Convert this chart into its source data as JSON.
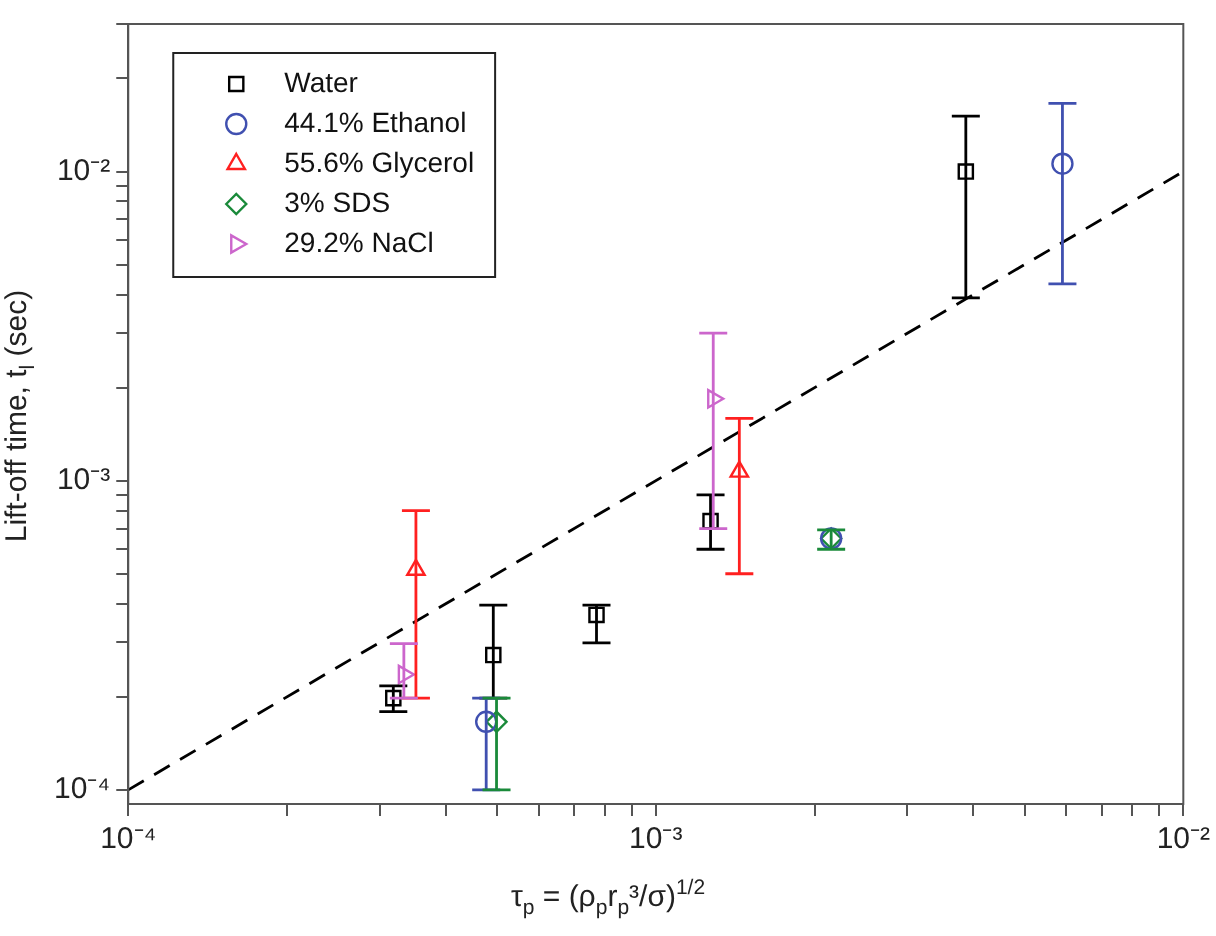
{
  "chart_data": {
    "type": "scatter",
    "xlabel": "τ$_{p}$ = (ρ$_{p}$r$_{p}$³/σ)$^{1/2}$",
    "ylabel": "Lift-off time, t$_{l}$ (sec)",
    "log": "xy",
    "grid": false,
    "legend": "top left",
    "xlim": [
      0.0001,
      0.01
    ],
    "ylim": [
      9e-05,
      0.03
    ],
    "xticks": [
      {
        "value": 0.0001,
        "label": "10⁻⁴"
      },
      {
        "value": 0.0002,
        "label": null
      },
      {
        "value": 0.0003,
        "label": null
      },
      {
        "value": 0.0004,
        "label": null
      },
      {
        "value": 0.0005,
        "label": null
      },
      {
        "value": 0.0006,
        "label": null
      },
      {
        "value": 0.0007,
        "label": null
      },
      {
        "value": 0.0008,
        "label": null
      },
      {
        "value": 0.0009,
        "label": null
      },
      {
        "value": 0.001,
        "label": "10⁻³"
      },
      {
        "value": 0.002,
        "label": null
      },
      {
        "value": 0.003,
        "label": null
      },
      {
        "value": 0.004,
        "label": null
      },
      {
        "value": 0.005,
        "label": null
      },
      {
        "value": 0.006,
        "label": null
      },
      {
        "value": 0.007,
        "label": null
      },
      {
        "value": 0.008,
        "label": null
      },
      {
        "value": 0.009,
        "label": null
      },
      {
        "value": 0.01,
        "label": "10⁻²"
      }
    ],
    "yticks": [
      {
        "value": 0.0001,
        "label": "10⁻⁴"
      },
      {
        "value": 0.0002,
        "label": null
      },
      {
        "value": 0.0003,
        "label": null
      },
      {
        "value": 0.0004,
        "label": null
      },
      {
        "value": 0.0005,
        "label": null
      },
      {
        "value": 0.0006,
        "label": null
      },
      {
        "value": 0.0007,
        "label": null
      },
      {
        "value": 0.0008,
        "label": null
      },
      {
        "value": 0.0009,
        "label": null
      },
      {
        "value": 0.001,
        "label": "10⁻³"
      },
      {
        "value": 0.002,
        "label": null
      },
      {
        "value": 0.003,
        "label": null
      },
      {
        "value": 0.004,
        "label": null
      },
      {
        "value": 0.005,
        "label": null
      },
      {
        "value": 0.006,
        "label": null
      },
      {
        "value": 0.007,
        "label": null
      },
      {
        "value": 0.008,
        "label": null
      },
      {
        "value": 0.009,
        "label": null
      },
      {
        "value": 0.01,
        "label": "10⁻²"
      },
      {
        "value": 0.02,
        "label": null
      },
      {
        "value": 0.03,
        "label": null
      }
    ],
    "series": [
      {
        "name": "Water",
        "color": "#000000",
        "marker": "square",
        "x": [
          0.000318,
          0.000492,
          0.000772,
          0.00127,
          0.00387
        ],
        "values": [
          0.000198,
          0.000273,
          0.000368,
          0.00074,
          0.01
        ],
        "errors": [
          [
            0.000179,
            0.000217
          ],
          [
            0.000198,
            0.000396
          ],
          [
            0.000299,
            0.000396
          ],
          [
            0.0006,
            0.0009
          ],
          [
            0.0039,
            0.0151
          ]
        ]
      },
      {
        "name": "44.1% Ethanol",
        "color": "#4050b0",
        "marker": "circle",
        "x": [
          0.000477,
          0.00215,
          0.0059
        ],
        "values": [
          0.000166,
          0.00065,
          0.0106
        ],
        "errors": [
          [
            0.0001,
            0.000198
          ],
          null,
          [
            0.00433,
            0.0166
          ]
        ]
      },
      {
        "name": "55.6% Glycerol",
        "color": "#ff2020",
        "marker": "triangle",
        "x": [
          0.000351,
          0.00144
        ],
        "values": [
          0.000515,
          0.00107
        ],
        "errors": [
          [
            0.000198,
            0.0008
          ],
          [
            0.0005,
            0.00159
          ]
        ]
      },
      {
        "name": "3% SDS",
        "color": "#1a8a3a",
        "marker": "diamond",
        "x": [
          0.000499,
          0.00215
        ],
        "values": [
          0.000166,
          0.00065
        ],
        "errors": [
          [
            0.0001,
            0.000198
          ],
          [
            0.0006,
            0.000693
          ]
        ]
      },
      {
        "name": "29.2% NaCl",
        "color": "#cc66cc",
        "marker": "triangle-right",
        "x": [
          0.000333,
          0.001285
        ],
        "values": [
          0.000236,
          0.00184
        ],
        "errors": [
          [
            0.000198,
            0.000297
          ],
          [
            0.0007,
            0.003
          ]
        ]
      },
      {
        "type": "line",
        "color": "#000000",
        "marker": "none",
        "line_style": "dashed",
        "x": [
          0.0001,
          0.01
        ],
        "values": [
          0.0001,
          0.01
        ]
      }
    ]
  }
}
